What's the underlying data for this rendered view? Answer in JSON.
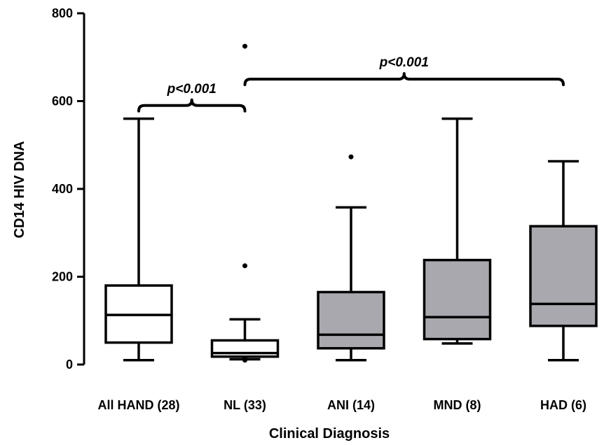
{
  "chart_data": {
    "type": "box",
    "xlabel": "Clinical Diagnosis",
    "ylabel": "CD14 HIV DNA",
    "ylim": [
      0,
      800
    ],
    "yticks": [
      0,
      200,
      400,
      600,
      800
    ],
    "grid": false,
    "box_colors": {
      "white": "#ffffff",
      "gray": "#a9a8ae"
    },
    "categories": [
      {
        "label": "All HAND (28)",
        "min": 10,
        "q1": 50,
        "median": 113,
        "q3": 180,
        "max": 560,
        "outliers": [],
        "fill": "white"
      },
      {
        "label": "NL (33)",
        "min": 12,
        "q1": 18,
        "median": 26,
        "q3": 55,
        "max": 103,
        "outliers": [
          10,
          15,
          225,
          725
        ],
        "fill": "white"
      },
      {
        "label": "ANI (14)",
        "min": 10,
        "q1": 37,
        "median": 68,
        "q3": 165,
        "max": 358,
        "outliers": [
          473
        ],
        "fill": "gray"
      },
      {
        "label": "MND (8)",
        "min": 48,
        "q1": 58,
        "median": 108,
        "q3": 238,
        "max": 560,
        "outliers": [],
        "fill": "gray"
      },
      {
        "label": "HAD (6)",
        "min": 10,
        "q1": 88,
        "median": 138,
        "q3": 315,
        "max": 463,
        "outliers": [],
        "fill": "gray"
      }
    ],
    "annotations": [
      {
        "text": "p<0.001",
        "from": 0,
        "to": 1,
        "level": 590
      },
      {
        "text": "p<0.001",
        "from": 1,
        "to": 4,
        "level": 650
      }
    ]
  }
}
